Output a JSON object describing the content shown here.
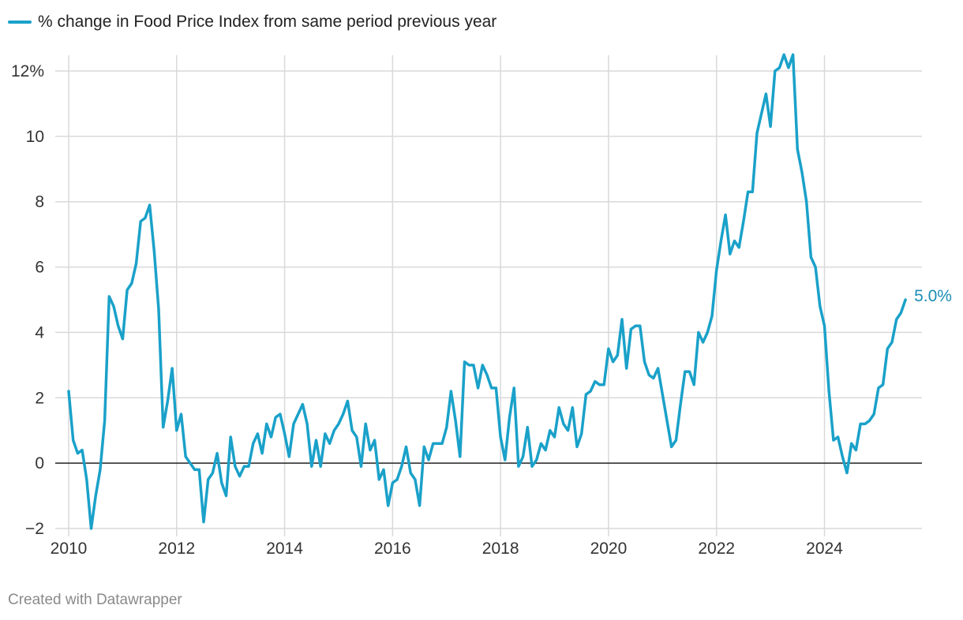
{
  "chart_data": {
    "type": "line",
    "title": "",
    "xlabel": "",
    "ylabel": "",
    "xlim": [
      2010,
      2025.85
    ],
    "ylim": [
      -2,
      12.5
    ],
    "grid": true,
    "legend": "top-left",
    "color": "#1aa1c9",
    "xticks": [
      2010,
      2012,
      2014,
      2016,
      2018,
      2020,
      2022,
      2024
    ],
    "xtick_labels": [
      "2010",
      "2012",
      "2014",
      "2016",
      "2018",
      "2020",
      "2022",
      "2024"
    ],
    "yticks": [
      -2,
      0,
      2,
      4,
      6,
      8,
      10,
      12
    ],
    "ytick_labels": [
      "−2",
      "0",
      "2",
      "4",
      "6",
      "8",
      "10",
      "12%"
    ],
    "series": [
      {
        "name": "% change in Food Price Index from same period previous year",
        "start_year": 2010,
        "start_month": 1,
        "values": [
          2.2,
          0.7,
          0.3,
          0.4,
          -0.5,
          -2.0,
          -1.0,
          -0.2,
          1.3,
          5.1,
          4.8,
          4.2,
          3.8,
          5.3,
          5.5,
          6.1,
          7.4,
          7.5,
          7.9,
          6.5,
          4.7,
          1.1,
          1.9,
          2.9,
          1.0,
          1.5,
          0.2,
          0.0,
          -0.2,
          -0.2,
          -1.8,
          -0.5,
          -0.3,
          0.3,
          -0.6,
          -1.0,
          0.8,
          -0.1,
          -0.4,
          -0.1,
          -0.1,
          0.6,
          0.9,
          0.3,
          1.2,
          0.8,
          1.4,
          1.5,
          0.9,
          0.2,
          1.2,
          1.5,
          1.8,
          1.2,
          -0.1,
          0.7,
          -0.1,
          0.9,
          0.6,
          1.0,
          1.2,
          1.5,
          1.9,
          1.0,
          0.8,
          -0.1,
          1.2,
          0.4,
          0.7,
          -0.5,
          -0.2,
          -1.3,
          -0.6,
          -0.5,
          -0.1,
          0.5,
          -0.3,
          -0.5,
          -1.3,
          0.5,
          0.1,
          0.6,
          0.6,
          0.6,
          1.1,
          2.2,
          1.3,
          0.2,
          3.1,
          3.0,
          3.0,
          2.3,
          3.0,
          2.7,
          2.3,
          2.3,
          0.8,
          0.1,
          1.4,
          2.3,
          -0.1,
          0.2,
          1.1,
          -0.1,
          0.1,
          0.6,
          0.4,
          1.0,
          0.8,
          1.7,
          1.2,
          1.0,
          1.7,
          0.5,
          0.9,
          2.1,
          2.2,
          2.5,
          2.4,
          2.4,
          3.5,
          3.1,
          3.3,
          4.4,
          2.9,
          4.1,
          4.2,
          4.2,
          3.1,
          2.7,
          2.6,
          2.9,
          2.1,
          1.3,
          0.5,
          0.7,
          1.8,
          2.8,
          2.8,
          2.4,
          4.0,
          3.7,
          4.0,
          4.5,
          5.9,
          6.8,
          7.6,
          6.4,
          6.8,
          6.6,
          7.4,
          8.3,
          8.3,
          10.1,
          10.7,
          11.3,
          10.3,
          12.0,
          12.1,
          12.5,
          12.1,
          12.5,
          9.6,
          8.9,
          8.0,
          6.3,
          6.0,
          4.8,
          4.2,
          2.2,
          0.7,
          0.8,
          0.2,
          -0.3,
          0.6,
          0.4,
          1.2,
          1.2,
          1.3,
          1.5,
          2.3,
          2.4,
          3.5,
          3.7,
          4.4,
          4.6,
          5.0
        ]
      }
    ],
    "end_label": "5.0%"
  },
  "legend": {
    "label": "% change in Food Price Index from same period previous year"
  },
  "footer": {
    "credit": "Created with Datawrapper"
  }
}
